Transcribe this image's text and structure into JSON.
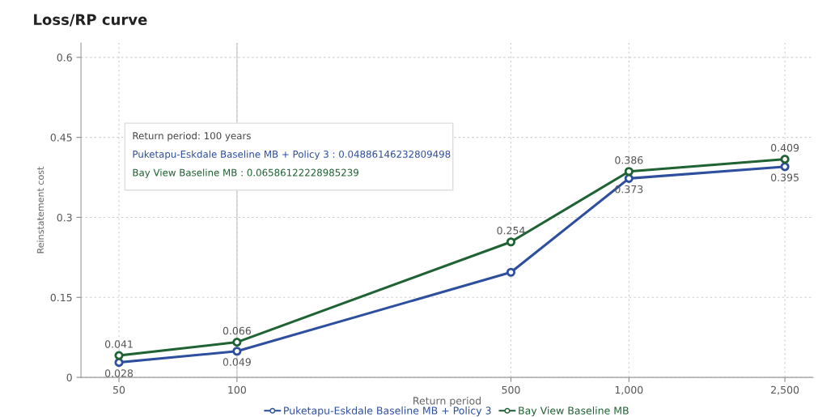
{
  "chart_data": {
    "type": "line",
    "title": "Loss/RP curve",
    "xlabel": "Return period",
    "ylabel": "Reinstatement cost",
    "x": [
      50,
      100,
      500,
      1000,
      2500
    ],
    "series": [
      {
        "name": "Puketapu-Eskdale Baseline MB + Policy 3",
        "color": "#2d4f9e",
        "values": [
          0.028,
          0.049,
          0.197,
          0.373,
          0.395
        ],
        "value_labels": [
          "0.028",
          "0.049",
          null,
          "0.373",
          "0.395"
        ]
      },
      {
        "name": "Bay View Baseline MB",
        "color": "#1f6233",
        "values": [
          0.041,
          0.066,
          0.254,
          0.386,
          0.409
        ],
        "value_labels": [
          "0.041",
          "0.066",
          "0.254",
          "0.386",
          "0.409"
        ]
      }
    ],
    "log": "x",
    "xlim": [
      40,
      2950
    ],
    "xticks": [
      50,
      100,
      500,
      {
        "value": 1000,
        "label": "1,000"
      },
      {
        "value": 2500,
        "label": "2,500"
      }
    ],
    "ylim": [
      0,
      0.627
    ],
    "yticks": [
      {
        "value": 0,
        "label": "0"
      },
      0.15,
      0.3,
      0.45,
      0.6
    ],
    "grid": true,
    "legend": "bottom",
    "marker": "circle",
    "line_style": "solid",
    "ref_lines": [
      {
        "axis": "x",
        "value": 100,
        "color": "#cccccc",
        "line_style": "solid"
      }
    ],
    "annotations": [
      "Return period: 100 years",
      "Puketapu-Eskdale Baseline MB + Policy 3 : 0.04886146232809498",
      "Bay View Baseline MB : 0.06586122228985239"
    ]
  }
}
